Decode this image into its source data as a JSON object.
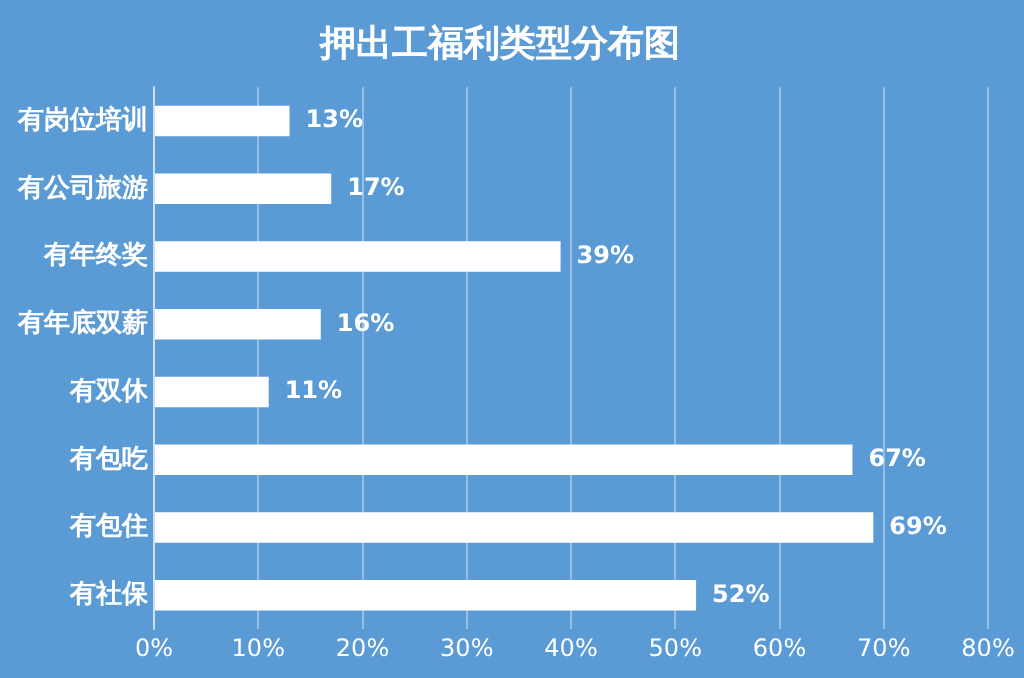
{
  "chart_data": {
    "type": "bar",
    "orientation": "horizontal",
    "title": "押出工福利类型分布图",
    "categories": [
      "有岗位培训",
      "有公司旅游",
      "有年终奖",
      "有年底双薪",
      "有双休",
      "有包吃",
      "有包住",
      "有社保"
    ],
    "values": [
      13,
      17,
      39,
      16,
      11,
      67,
      69,
      52
    ],
    "value_labels": [
      "13%",
      "17%",
      "39%",
      "16%",
      "11%",
      "67%",
      "69%",
      "52%"
    ],
    "color": "#ffffff",
    "xlim": [
      0,
      80
    ],
    "xticks": [
      {
        "value": 0,
        "label": "0%"
      },
      {
        "value": 10,
        "label": "10%"
      },
      {
        "value": 20,
        "label": "20%"
      },
      {
        "value": 30,
        "label": "30%"
      },
      {
        "value": 40,
        "label": "40%"
      },
      {
        "value": 50,
        "label": "50%"
      },
      {
        "value": 60,
        "label": "60%"
      },
      {
        "value": 70,
        "label": "70%"
      },
      {
        "value": 80,
        "label": "80%"
      }
    ],
    "grid": "x",
    "legend": false
  }
}
